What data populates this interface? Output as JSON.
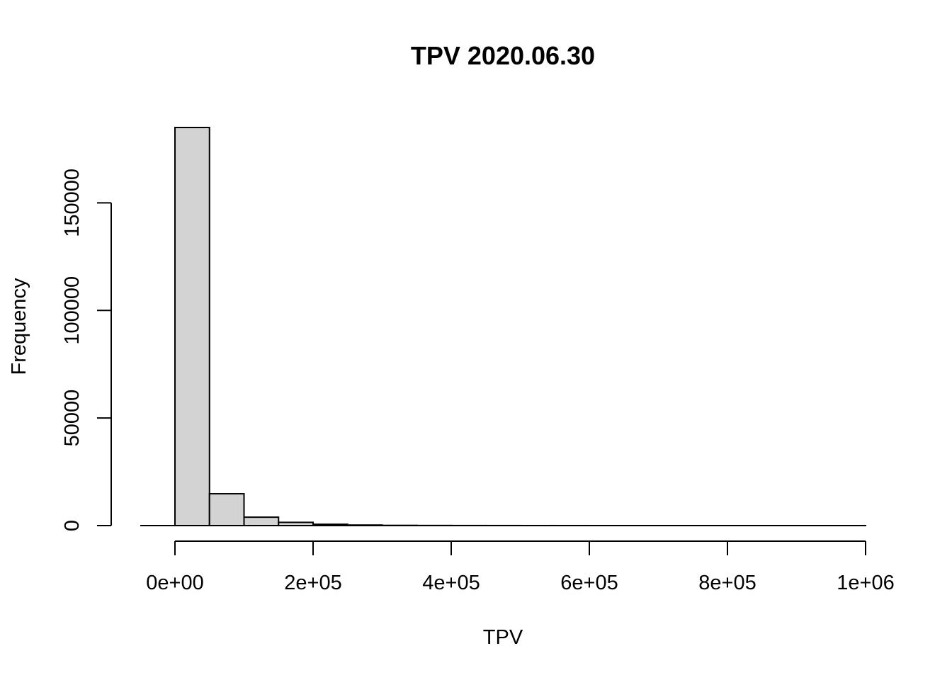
{
  "chart_data": {
    "type": "bar",
    "title": "TPV 2020.06.30",
    "xlabel": "TPV",
    "ylabel": "Frequency",
    "bin_width": 50000,
    "bins": [
      [
        0,
        50000
      ],
      [
        50000,
        100000
      ],
      [
        100000,
        150000
      ],
      [
        150000,
        200000
      ],
      [
        200000,
        250000
      ],
      [
        250000,
        300000
      ],
      [
        300000,
        350000
      ],
      [
        350000,
        400000
      ],
      [
        400000,
        450000
      ],
      [
        450000,
        500000
      ],
      [
        500000,
        550000
      ],
      [
        550000,
        600000
      ],
      [
        600000,
        650000
      ],
      [
        650000,
        700000
      ],
      [
        700000,
        750000
      ],
      [
        750000,
        800000
      ],
      [
        800000,
        850000
      ],
      [
        850000,
        900000
      ],
      [
        900000,
        950000
      ],
      [
        950000,
        1000000
      ]
    ],
    "values": [
      185000,
      14800,
      3900,
      1500,
      600,
      250,
      100,
      50,
      30,
      20,
      10,
      10,
      5,
      5,
      5,
      5,
      3,
      3,
      2,
      2
    ],
    "xlim": [
      0,
      1000000
    ],
    "ylim": [
      0,
      185000
    ],
    "x_ticks": [
      0,
      200000,
      400000,
      600000,
      800000,
      1000000
    ],
    "x_tick_labels": [
      "0e+00",
      "2e+05",
      "4e+05",
      "6e+05",
      "8e+05",
      "1e+06"
    ],
    "y_ticks": [
      0,
      50000,
      100000,
      150000
    ],
    "y_tick_labels": [
      "0",
      "50000",
      "100000",
      "150000"
    ],
    "grid": false,
    "colors": {
      "bar_fill": "#d3d3d3",
      "bar_stroke": "#000000"
    }
  }
}
